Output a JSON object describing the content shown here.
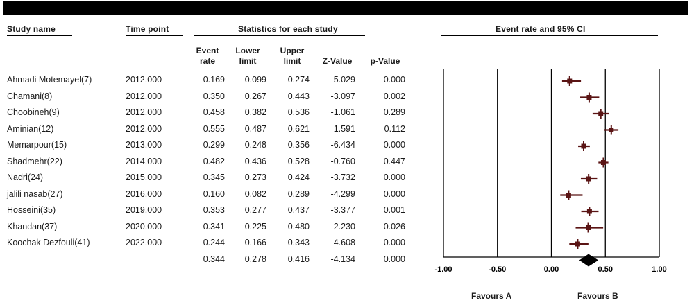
{
  "headers": {
    "study_name": "Study name",
    "time_point": "Time point",
    "stats": "Statistics for each study",
    "plot": "Event rate and 95% CI"
  },
  "columns": {
    "event_rate": [
      "Event",
      "rate"
    ],
    "lower": [
      "Lower",
      "limit"
    ],
    "upper": [
      "Upper",
      "limit"
    ],
    "z": "Z-Value",
    "p": "p-Value"
  },
  "favours": {
    "a": "Favours A",
    "b": "Favours B"
  },
  "chart_data": {
    "type": "forest",
    "xlim": [
      -1.0,
      1.0
    ],
    "ticks": [
      -1.0,
      -0.5,
      0.0,
      0.5,
      1.0
    ],
    "tick_labels": [
      "-1.00",
      "-0.50",
      "0.00",
      "0.50",
      "1.00"
    ],
    "colors": {
      "study": "#5a1414",
      "summary": "#000000"
    },
    "studies": [
      {
        "name": "Ahmadi Motemayel(7)",
        "time": "2012.000",
        "rate": 0.169,
        "lower": 0.099,
        "upper": 0.274,
        "z": "-5.029",
        "p": "0.000",
        "rate_text": "0.169",
        "lower_text": "0.099",
        "upper_text": "0.274"
      },
      {
        "name": "Chamani(8)",
        "time": "2012.000",
        "rate": 0.35,
        "lower": 0.267,
        "upper": 0.443,
        "z": "-3.097",
        "p": "0.002",
        "rate_text": "0.350",
        "lower_text": "0.267",
        "upper_text": "0.443"
      },
      {
        "name": "Choobineh(9)",
        "time": "2012.000",
        "rate": 0.458,
        "lower": 0.382,
        "upper": 0.536,
        "z": "-1.061",
        "p": "0.289",
        "rate_text": "0.458",
        "lower_text": "0.382",
        "upper_text": "0.536"
      },
      {
        "name": "Aminian(12)",
        "time": "2012.000",
        "rate": 0.555,
        "lower": 0.487,
        "upper": 0.621,
        "z": "1.591",
        "p": "0.112",
        "rate_text": "0.555",
        "lower_text": "0.487",
        "upper_text": "0.621"
      },
      {
        "name": "Memarpour(15)",
        "time": "2013.000",
        "rate": 0.299,
        "lower": 0.248,
        "upper": 0.356,
        "z": "-6.434",
        "p": "0.000",
        "rate_text": "0.299",
        "lower_text": "0.248",
        "upper_text": "0.356"
      },
      {
        "name": "Shadmehr(22)",
        "time": "2014.000",
        "rate": 0.482,
        "lower": 0.436,
        "upper": 0.528,
        "z": "-0.760",
        "p": "0.447",
        "rate_text": "0.482",
        "lower_text": "0.436",
        "upper_text": "0.528"
      },
      {
        "name": "Nadri(24)",
        "time": "2015.000",
        "rate": 0.345,
        "lower": 0.273,
        "upper": 0.424,
        "z": "-3.732",
        "p": "0.000",
        "rate_text": "0.345",
        "lower_text": "0.273",
        "upper_text": "0.424"
      },
      {
        "name": "jalili nasab(27)",
        "time": "2016.000",
        "rate": 0.16,
        "lower": 0.082,
        "upper": 0.289,
        "z": "-4.299",
        "p": "0.000",
        "rate_text": "0.160",
        "lower_text": "0.082",
        "upper_text": "0.289"
      },
      {
        "name": "Hosseini(35)",
        "time": "2019.000",
        "rate": 0.353,
        "lower": 0.277,
        "upper": 0.437,
        "z": "-3.377",
        "p": "0.001",
        "rate_text": "0.353",
        "lower_text": "0.277",
        "upper_text": "0.437"
      },
      {
        "name": "Khandan(37)",
        "time": "2020.000",
        "rate": 0.341,
        "lower": 0.225,
        "upper": 0.48,
        "z": "-2.230",
        "p": "0.026",
        "rate_text": "0.341",
        "lower_text": "0.225",
        "upper_text": "0.480"
      },
      {
        "name": "Koochak Dezfouli(41)",
        "time": "2022.000",
        "rate": 0.244,
        "lower": 0.166,
        "upper": 0.343,
        "z": "-4.608",
        "p": "0.000",
        "rate_text": "0.244",
        "lower_text": "0.166",
        "upper_text": "0.343"
      }
    ],
    "summary": {
      "rate": 0.344,
      "lower": 0.278,
      "upper": 0.416,
      "z": "-4.134",
      "p": "0.000",
      "rate_text": "0.344",
      "lower_text": "0.278",
      "upper_text": "0.416"
    }
  }
}
